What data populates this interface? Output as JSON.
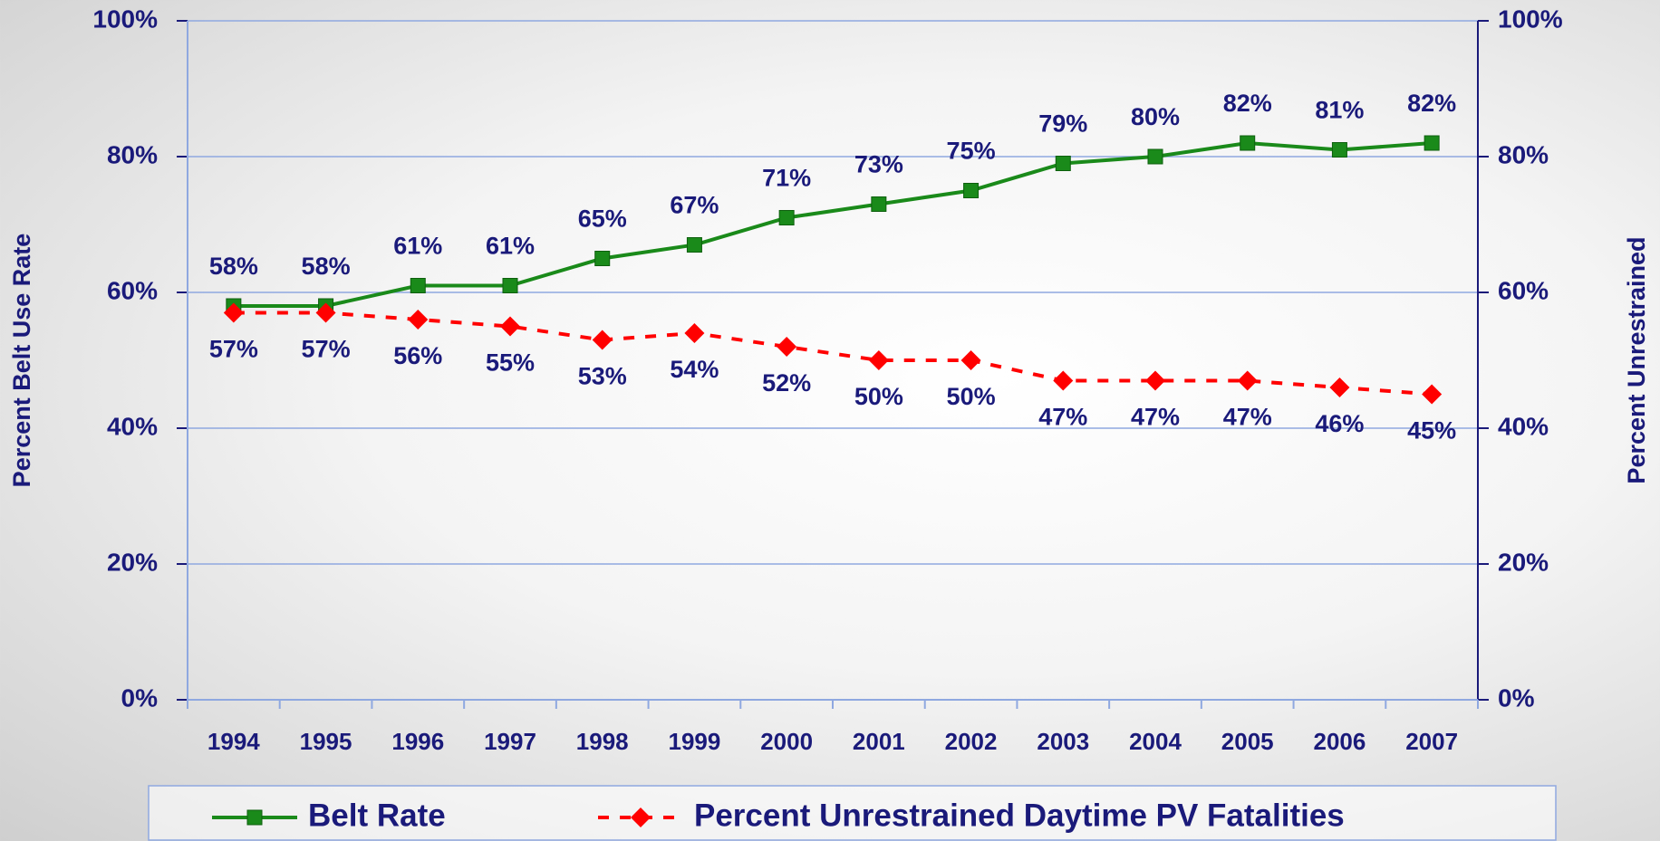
{
  "chart_data": {
    "type": "line",
    "y_label": "Percent Belt Use Rate",
    "y2_label": "Percent Unrestrained",
    "categories": [
      "1994",
      "1995",
      "1996",
      "1997",
      "1998",
      "1999",
      "2000",
      "2001",
      "2002",
      "2003",
      "2004",
      "2005",
      "2006",
      "2007"
    ],
    "series": [
      {
        "name": "Belt Rate",
        "color": "#1a8a1a",
        "marker": "square",
        "dash": false,
        "values": [
          58,
          58,
          61,
          61,
          65,
          67,
          71,
          73,
          75,
          79,
          80,
          82,
          81,
          82
        ],
        "value_labels": [
          "58%",
          "58%",
          "61%",
          "61%",
          "65%",
          "67%",
          "71%",
          "73%",
          "75%",
          "79%",
          "80%",
          "82%",
          "81%",
          "82%"
        ]
      },
      {
        "name": "Percent Unrestrained Daytime PV Fatalities",
        "color": "#ff0000",
        "marker": "diamond",
        "dash": true,
        "axis": "y2",
        "values": [
          57,
          57,
          56,
          55,
          53,
          54,
          52,
          50,
          50,
          47,
          47,
          47,
          46,
          45
        ],
        "value_labels": [
          "57%",
          "57%",
          "56%",
          "55%",
          "53%",
          "54%",
          "52%",
          "50%",
          "50%",
          "47%",
          "47%",
          "47%",
          "46%",
          "45%"
        ]
      }
    ],
    "ylim": [
      0,
      100
    ],
    "yticks": [
      {
        "value": 0,
        "label": "0%"
      },
      {
        "value": 20,
        "label": "20%"
      },
      {
        "value": 40,
        "label": "40%"
      },
      {
        "value": 60,
        "label": "60%"
      },
      {
        "value": 80,
        "label": "80%"
      },
      {
        "value": 100,
        "label": "100%"
      }
    ],
    "y2lim": [
      0,
      100
    ],
    "y2ticks": [
      {
        "value": 0,
        "label": "0%"
      },
      {
        "value": 20,
        "label": "20%"
      },
      {
        "value": 40,
        "label": "40%"
      },
      {
        "value": 60,
        "label": "60%"
      },
      {
        "value": 80,
        "label": "80%"
      },
      {
        "value": 100,
        "label": "100%"
      }
    ],
    "grid": true,
    "legend": "bottom"
  }
}
